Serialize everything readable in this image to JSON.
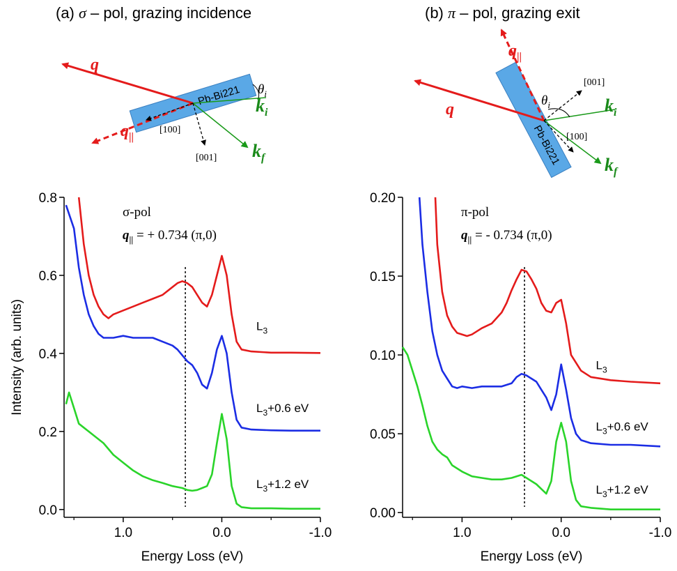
{
  "colors": {
    "red": "#e41b1b",
    "blue": "#1b2de4",
    "green": "#2ad42a",
    "green_text": "#1a8a1a",
    "slab": "#5aa8e6"
  },
  "panels": [
    {
      "title_prefix": "(a) ",
      "title_symbol": "σ",
      "title_suffix": " – pol, grazing incidence",
      "slab_label": "Pb-Bi221",
      "dir_100": "[100]",
      "dir_001": "[001]"
    },
    {
      "title_prefix": "(b) ",
      "title_symbol": "π",
      "title_suffix": " – pol, grazing exit",
      "slab_label": "Pb-Bi221",
      "dir_100": "[100]",
      "dir_001": "[001]"
    }
  ],
  "chart_data": [
    {
      "type": "line",
      "ylabel": "Intensity (arb. units)",
      "xlabel": "Energy Loss (eV)",
      "xlim": [
        1.6,
        -1.0
      ],
      "ylim": [
        -0.02,
        0.8
      ],
      "xticks": [
        "1.0",
        "0.0",
        "-1.0"
      ],
      "yticks": [
        "0.0",
        "0.2",
        "0.4",
        "0.6",
        "0.8"
      ],
      "annotation_pol": "σ-pol",
      "annotation_q": "= + 0.734 (π,0)",
      "dashed_line_x": 0.37,
      "series": [
        {
          "name": "L3",
          "label_main": "L",
          "label_sub": "3",
          "label_tail": "",
          "color": "#e41b1b",
          "label_y": 0.46,
          "x": [
            1.45,
            1.4,
            1.35,
            1.3,
            1.25,
            1.2,
            1.15,
            1.1,
            1.0,
            0.9,
            0.8,
            0.7,
            0.6,
            0.5,
            0.45,
            0.4,
            0.35,
            0.3,
            0.25,
            0.2,
            0.15,
            0.1,
            0.05,
            0.0,
            -0.05,
            -0.1,
            -0.15,
            -0.2,
            -0.3,
            -0.5,
            -0.7,
            -1.0
          ],
          "values": [
            0.8,
            0.68,
            0.6,
            0.55,
            0.52,
            0.5,
            0.49,
            0.5,
            0.51,
            0.52,
            0.53,
            0.54,
            0.55,
            0.57,
            0.58,
            0.585,
            0.58,
            0.57,
            0.55,
            0.53,
            0.52,
            0.55,
            0.6,
            0.65,
            0.6,
            0.5,
            0.43,
            0.41,
            0.405,
            0.402,
            0.402,
            0.401
          ]
        },
        {
          "name": "L3+0.6 eV",
          "label_main": "L",
          "label_sub": "3",
          "label_tail": "+0.6 eV",
          "color": "#1b2de4",
          "label_y": 0.25,
          "x": [
            1.58,
            1.5,
            1.45,
            1.4,
            1.35,
            1.3,
            1.25,
            1.2,
            1.1,
            1.0,
            0.9,
            0.8,
            0.7,
            0.6,
            0.5,
            0.45,
            0.4,
            0.35,
            0.3,
            0.25,
            0.2,
            0.15,
            0.1,
            0.05,
            0.0,
            -0.05,
            -0.1,
            -0.15,
            -0.2,
            -0.3,
            -0.5,
            -0.7,
            -1.0
          ],
          "values": [
            0.78,
            0.72,
            0.62,
            0.55,
            0.5,
            0.47,
            0.45,
            0.44,
            0.44,
            0.445,
            0.44,
            0.44,
            0.44,
            0.43,
            0.42,
            0.41,
            0.395,
            0.38,
            0.37,
            0.35,
            0.32,
            0.31,
            0.35,
            0.41,
            0.445,
            0.4,
            0.3,
            0.23,
            0.21,
            0.205,
            0.203,
            0.202,
            0.202
          ]
        },
        {
          "name": "L3+1.2 eV",
          "label_main": "L",
          "label_sub": "3",
          "label_tail": "+1.2 eV",
          "color": "#2ad42a",
          "label_y": 0.055,
          "x": [
            1.58,
            1.55,
            1.5,
            1.45,
            1.4,
            1.3,
            1.2,
            1.1,
            1.0,
            0.9,
            0.8,
            0.7,
            0.6,
            0.5,
            0.4,
            0.35,
            0.3,
            0.25,
            0.2,
            0.15,
            0.1,
            0.05,
            0.0,
            -0.05,
            -0.1,
            -0.15,
            -0.2,
            -0.3,
            -0.5,
            -0.7,
            -1.0
          ],
          "values": [
            0.27,
            0.3,
            0.26,
            0.22,
            0.21,
            0.19,
            0.17,
            0.14,
            0.12,
            0.1,
            0.085,
            0.075,
            0.068,
            0.06,
            0.055,
            0.05,
            0.048,
            0.05,
            0.055,
            0.06,
            0.09,
            0.17,
            0.245,
            0.18,
            0.06,
            0.015,
            0.006,
            0.003,
            0.003,
            0.002,
            0.002
          ]
        }
      ]
    },
    {
      "type": "line",
      "ylabel": "",
      "xlabel": "Energy Loss (eV)",
      "xlim": [
        1.6,
        -1.0
      ],
      "ylim": [
        -0.003,
        0.2
      ],
      "xticks": [
        "1.0",
        "0.0",
        "-1.0"
      ],
      "yticks": [
        "0.00",
        "0.05",
        "0.10",
        "0.15",
        "0.20"
      ],
      "annotation_pol": "π-pol",
      "annotation_q": "= - 0.734 (π,0)",
      "dashed_line_x": 0.37,
      "series": [
        {
          "name": "L3",
          "label_main": "L",
          "label_sub": "3",
          "label_tail": "",
          "color": "#e41b1b",
          "label_y": 0.091,
          "x": [
            1.27,
            1.25,
            1.2,
            1.15,
            1.1,
            1.05,
            1.0,
            0.95,
            0.9,
            0.85,
            0.8,
            0.7,
            0.6,
            0.55,
            0.5,
            0.45,
            0.4,
            0.35,
            0.3,
            0.25,
            0.2,
            0.15,
            0.1,
            0.05,
            0.0,
            -0.05,
            -0.1,
            -0.2,
            -0.3,
            -0.5,
            -0.7,
            -1.0
          ],
          "values": [
            0.2,
            0.17,
            0.14,
            0.125,
            0.118,
            0.114,
            0.113,
            0.112,
            0.113,
            0.115,
            0.117,
            0.12,
            0.127,
            0.133,
            0.141,
            0.148,
            0.154,
            0.153,
            0.148,
            0.142,
            0.133,
            0.128,
            0.127,
            0.133,
            0.135,
            0.12,
            0.1,
            0.09,
            0.086,
            0.084,
            0.083,
            0.082
          ]
        },
        {
          "name": "L3+0.6 eV",
          "label_main": "L",
          "label_sub": "3",
          "label_tail": "+0.6 eV",
          "color": "#1b2de4",
          "label_y": 0.052,
          "x": [
            1.43,
            1.4,
            1.35,
            1.3,
            1.25,
            1.2,
            1.15,
            1.1,
            1.05,
            1.0,
            0.9,
            0.8,
            0.7,
            0.6,
            0.5,
            0.45,
            0.4,
            0.35,
            0.3,
            0.25,
            0.2,
            0.15,
            0.1,
            0.05,
            0.0,
            -0.05,
            -0.1,
            -0.15,
            -0.2,
            -0.3,
            -0.5,
            -0.7,
            -1.0
          ],
          "values": [
            0.2,
            0.17,
            0.14,
            0.115,
            0.1,
            0.09,
            0.085,
            0.08,
            0.079,
            0.08,
            0.079,
            0.08,
            0.08,
            0.08,
            0.082,
            0.086,
            0.088,
            0.087,
            0.085,
            0.083,
            0.078,
            0.073,
            0.065,
            0.075,
            0.094,
            0.078,
            0.06,
            0.05,
            0.046,
            0.044,
            0.043,
            0.043,
            0.042
          ]
        },
        {
          "name": "L3+1.2 eV",
          "label_main": "L",
          "label_sub": "3",
          "label_tail": "+1.2 eV",
          "color": "#2ad42a",
          "label_y": 0.012,
          "x": [
            1.6,
            1.55,
            1.5,
            1.45,
            1.4,
            1.35,
            1.3,
            1.25,
            1.2,
            1.15,
            1.1,
            1.0,
            0.9,
            0.8,
            0.7,
            0.6,
            0.5,
            0.45,
            0.4,
            0.35,
            0.3,
            0.25,
            0.2,
            0.15,
            0.1,
            0.05,
            0.0,
            -0.05,
            -0.1,
            -0.15,
            -0.2,
            -0.3,
            -0.5,
            -0.7,
            -1.0
          ],
          "values": [
            0.105,
            0.1,
            0.09,
            0.08,
            0.068,
            0.055,
            0.045,
            0.04,
            0.037,
            0.035,
            0.03,
            0.026,
            0.023,
            0.022,
            0.021,
            0.021,
            0.022,
            0.023,
            0.024,
            0.022,
            0.02,
            0.018,
            0.015,
            0.012,
            0.02,
            0.045,
            0.057,
            0.045,
            0.02,
            0.008,
            0.004,
            0.003,
            0.002,
            0.002,
            0.002
          ]
        }
      ]
    }
  ]
}
